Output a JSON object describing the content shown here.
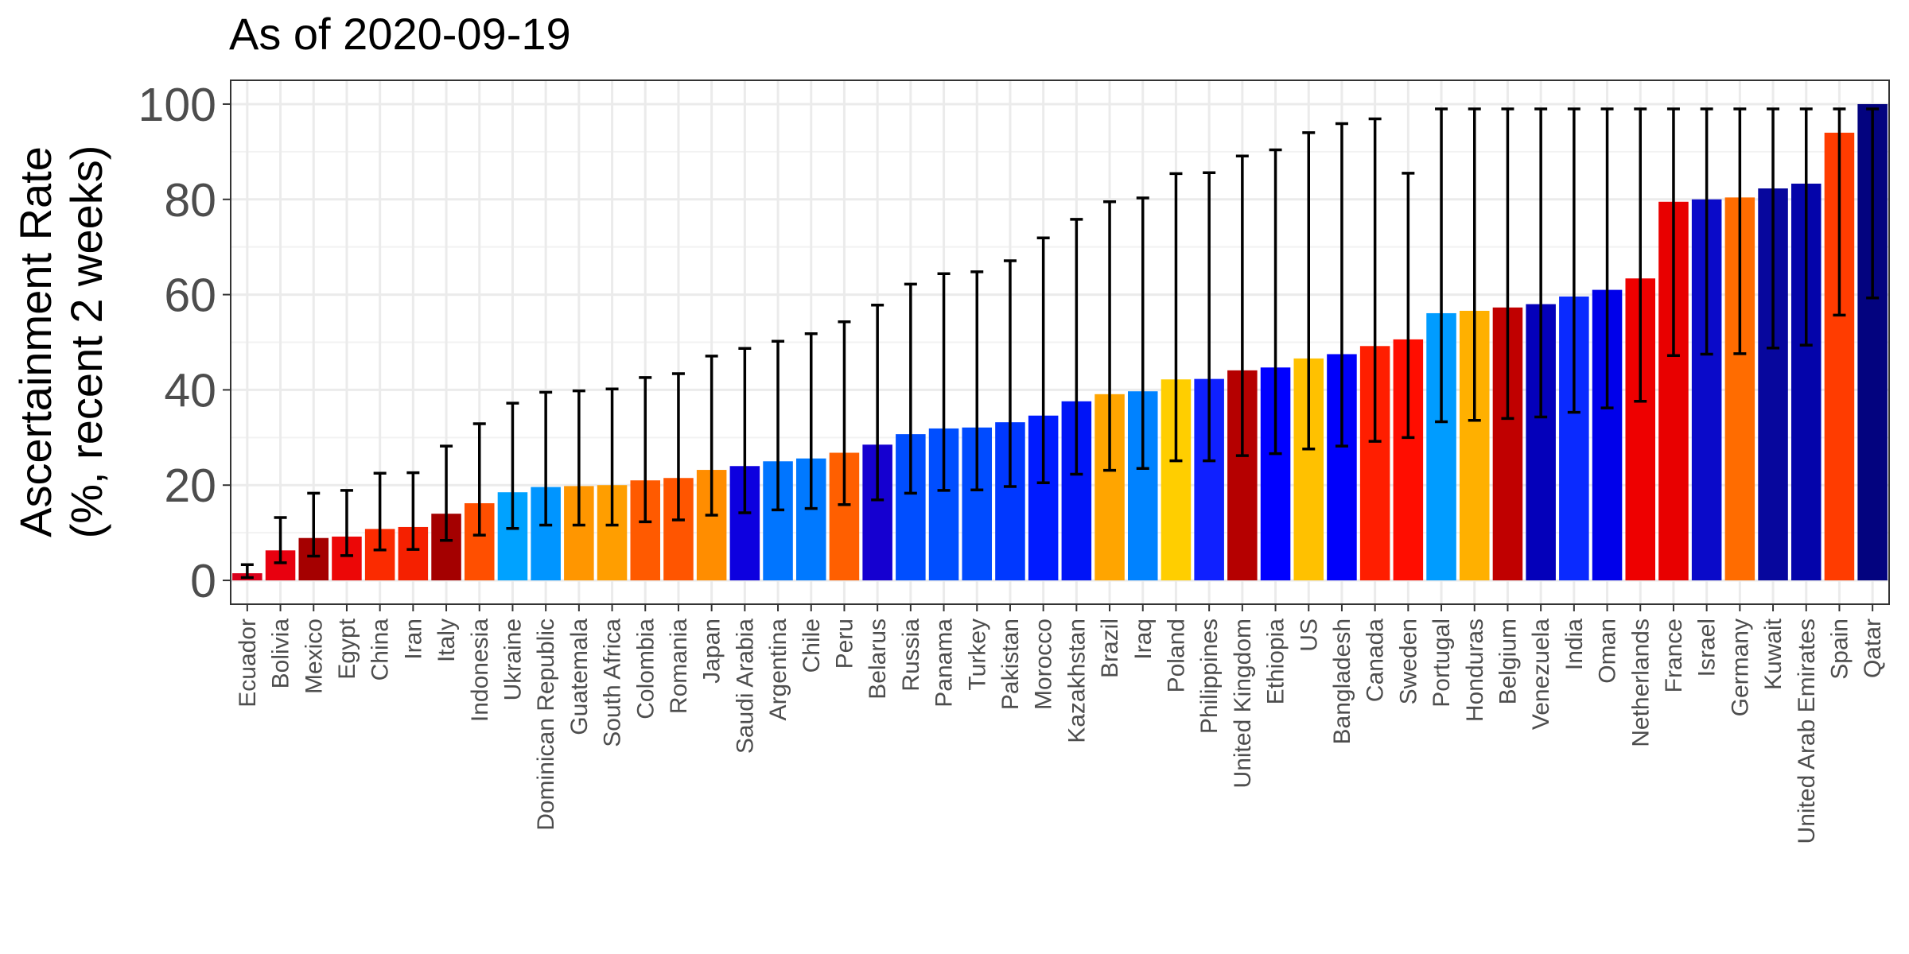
{
  "chart_data": {
    "type": "bar",
    "title": "As of 2020-09-19",
    "ylabel_line1": "Ascertainment Rate",
    "ylabel_line2": "(%, recent 2 weeks)",
    "xlabel": "",
    "ylim": [
      -5,
      105
    ],
    "yticks": [
      0,
      20,
      40,
      60,
      80,
      100
    ],
    "grid": true,
    "legend": "none",
    "error_bars": true,
    "categories": [
      "Ecuador",
      "Bolivia",
      "Mexico",
      "Egypt",
      "China",
      "Iran",
      "Italy",
      "Indonesia",
      "Ukraine",
      "Dominican Republic",
      "Guatemala",
      "South Africa",
      "Colombia",
      "Romania",
      "Japan",
      "Saudi Arabia",
      "Argentina",
      "Chile",
      "Peru",
      "Belarus",
      "Russia",
      "Panama",
      "Turkey",
      "Pakistan",
      "Morocco",
      "Kazakhstan",
      "Brazil",
      "Iraq",
      "Poland",
      "Philippines",
      "United Kingdom",
      "Ethiopia",
      "US",
      "Bangladesh",
      "Canada",
      "Sweden",
      "Portugal",
      "Honduras",
      "Belgium",
      "Venezuela",
      "India",
      "Oman",
      "Netherlands",
      "France",
      "Israel",
      "Germany",
      "Kuwait",
      "United Arab Emirates",
      "Spain",
      "Qatar"
    ],
    "values": [
      1.5,
      6.3,
      8.9,
      9.2,
      10.8,
      11.2,
      14.0,
      16.2,
      18.5,
      19.6,
      19.8,
      20.0,
      21.0,
      21.5,
      23.2,
      24.0,
      25.0,
      25.6,
      26.8,
      28.5,
      30.7,
      31.9,
      32.1,
      33.2,
      34.6,
      37.6,
      39.1,
      39.7,
      42.2,
      42.3,
      44.1,
      44.7,
      46.6,
      47.5,
      49.2,
      50.6,
      56.1,
      56.6,
      57.3,
      58.0,
      59.6,
      61.0,
      63.4,
      79.5,
      80.0,
      80.4,
      82.3,
      83.3,
      94.0,
      100.0
    ],
    "lower": [
      0.6,
      3.7,
      5.1,
      5.2,
      6.4,
      6.5,
      8.4,
      9.5,
      10.9,
      11.6,
      11.6,
      11.6,
      12.3,
      12.7,
      13.7,
      14.2,
      14.8,
      15.1,
      15.9,
      16.9,
      18.3,
      18.9,
      19.0,
      19.7,
      20.5,
      22.3,
      23.1,
      23.5,
      25.1,
      25.1,
      26.2,
      26.6,
      27.6,
      28.2,
      29.2,
      30.0,
      33.3,
      33.6,
      34.0,
      34.3,
      35.3,
      36.2,
      37.6,
      47.2,
      47.5,
      47.6,
      48.8,
      49.4,
      55.7,
      59.3
    ],
    "upper": [
      3.3,
      13.2,
      18.3,
      18.9,
      22.5,
      22.6,
      28.2,
      32.9,
      37.2,
      39.5,
      39.8,
      40.2,
      42.6,
      43.4,
      47.1,
      48.7,
      50.2,
      51.8,
      54.3,
      57.8,
      62.2,
      64.4,
      64.8,
      67.1,
      71.9,
      75.8,
      79.5,
      80.3,
      85.4,
      85.6,
      89.1,
      90.4,
      94.0,
      95.9,
      96.9,
      85.5,
      99.0,
      99.0,
      99.0,
      99.0,
      99.0,
      99.0,
      99.0,
      99.0,
      99.0,
      99.0,
      99.0,
      99.0,
      99.0,
      99.0
    ],
    "colors": [
      "#D9001B",
      "#E8000F",
      "#A50000",
      "#EC0707",
      "#FB2B00",
      "#F52000",
      "#A40000",
      "#FF4F00",
      "#00A2FF",
      "#0095FF",
      "#FF9600",
      "#FF9E00",
      "#FF5A00",
      "#FF5500",
      "#FF8D00",
      "#0D00DF",
      "#0075FF",
      "#0079FF",
      "#FF5F00",
      "#1500D0",
      "#004EFF",
      "#004EFF",
      "#004BFF",
      "#0038FF",
      "#001BFF",
      "#0014F7",
      "#FFA500",
      "#0082FF",
      "#FFCE00",
      "#0F20FF",
      "#B50000",
      "#0000FF",
      "#FFC100",
      "#0000FA",
      "#FF1E00",
      "#FF0D00",
      "#009CFF",
      "#FFB000",
      "#C00000",
      "#0400BA",
      "#0A2AFF",
      "#0000EA",
      "#EE0000",
      "#E80000",
      "#0A0AC9",
      "#FF6C00",
      "#07079D",
      "#0404AA",
      "#FF3C00",
      "#03037F"
    ]
  }
}
